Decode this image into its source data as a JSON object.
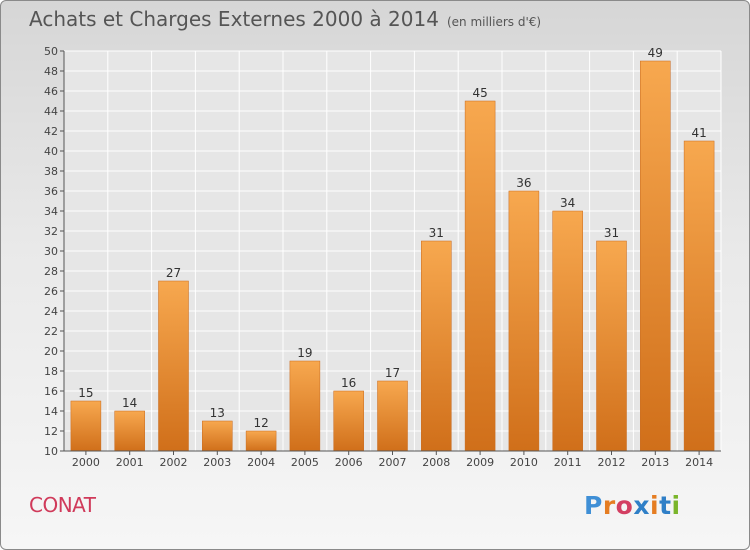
{
  "title": {
    "main": "Achats et Charges Externes 2000 à 2014",
    "unit": "(en milliers d'€)"
  },
  "commune_name": "CONAT",
  "logo": {
    "text": "Proxiti",
    "colors": [
      "#3f8fd6",
      "#e57d22",
      "#d33f62",
      "#2f7fc7",
      "#e57d22",
      "#2f7fc7",
      "#7ab52b"
    ]
  },
  "colors": {
    "bar_light": "#f7a84f",
    "bar_dark": "#d06f1a",
    "grid": "#ffffff",
    "title": "#555555",
    "commune": "#d03a5a"
  },
  "chart_data": {
    "type": "bar",
    "categories": [
      "2000",
      "2001",
      "2002",
      "2003",
      "2004",
      "2005",
      "2006",
      "2007",
      "2008",
      "2009",
      "2010",
      "2011",
      "2012",
      "2013",
      "2014"
    ],
    "values": [
      15,
      14,
      27,
      13,
      12,
      19,
      16,
      17,
      31,
      45,
      36,
      34,
      31,
      49,
      41
    ],
    "ylim": [
      10,
      50
    ],
    "y_ticks": [
      10,
      12,
      14,
      16,
      18,
      20,
      22,
      24,
      26,
      28,
      30,
      32,
      34,
      36,
      38,
      40,
      42,
      44,
      46,
      48,
      50
    ],
    "grid": true,
    "data_labels": true
  }
}
